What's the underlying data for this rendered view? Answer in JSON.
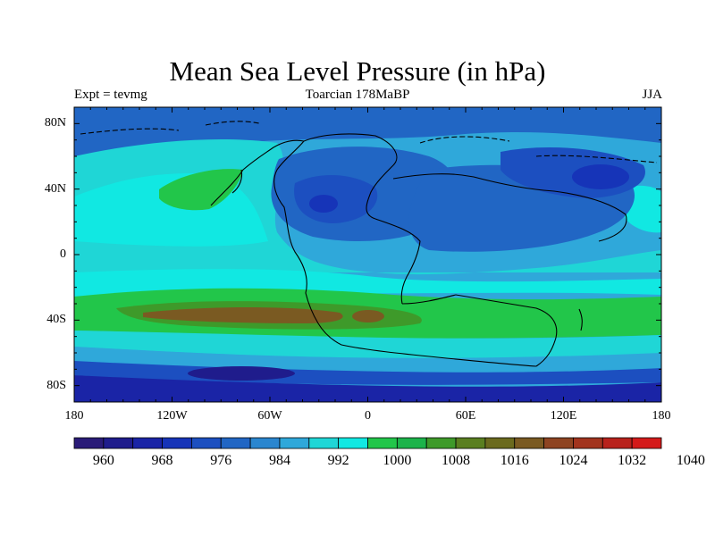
{
  "title": "Mean Sea Level Pressure (in hPa)",
  "subtitle_left": "Expt = tevmg",
  "subtitle_center": "Toarcian 178MaBP",
  "subtitle_right": "JJA",
  "map": {
    "lon_range": [
      -180,
      180
    ],
    "lat_range": [
      -90,
      90
    ],
    "lat_ticks": [
      {
        "value": 80,
        "label": "80N"
      },
      {
        "value": 40,
        "label": "40N"
      },
      {
        "value": 0,
        "label": "0"
      },
      {
        "value": -40,
        "label": "40S"
      },
      {
        "value": -80,
        "label": "80S"
      }
    ],
    "lon_ticks": [
      {
        "value": -180,
        "label": "180"
      },
      {
        "value": -120,
        "label": "120W"
      },
      {
        "value": -60,
        "label": "60W"
      },
      {
        "value": 0,
        "label": "0"
      },
      {
        "value": 60,
        "label": "60E"
      },
      {
        "value": 120,
        "label": "120E"
      },
      {
        "value": 180,
        "label": "180"
      }
    ]
  },
  "colorbar": {
    "levels": [
      960,
      964,
      968,
      972,
      976,
      980,
      984,
      988,
      992,
      996,
      1000,
      1004,
      1008,
      1012,
      1016,
      1020,
      1024,
      1028,
      1032,
      1036,
      1040
    ],
    "labels": [
      "960",
      "968",
      "976",
      "984",
      "992",
      "1000",
      "1008",
      "1016",
      "1024",
      "1032",
      "1040"
    ],
    "colors": [
      "#2a1b78",
      "#1f1c8c",
      "#1a24a6",
      "#1634b8",
      "#1c4fc0",
      "#2166c4",
      "#2a86cf",
      "#2fa8da",
      "#1fd6d6",
      "#11e8e2",
      "#22c64a",
      "#1cb34a",
      "#3e9a2a",
      "#5a7f20",
      "#6b6a1e",
      "#7a5a22",
      "#8e4422",
      "#a2341e",
      "#b8221c",
      "#d41a1a"
    ]
  }
}
